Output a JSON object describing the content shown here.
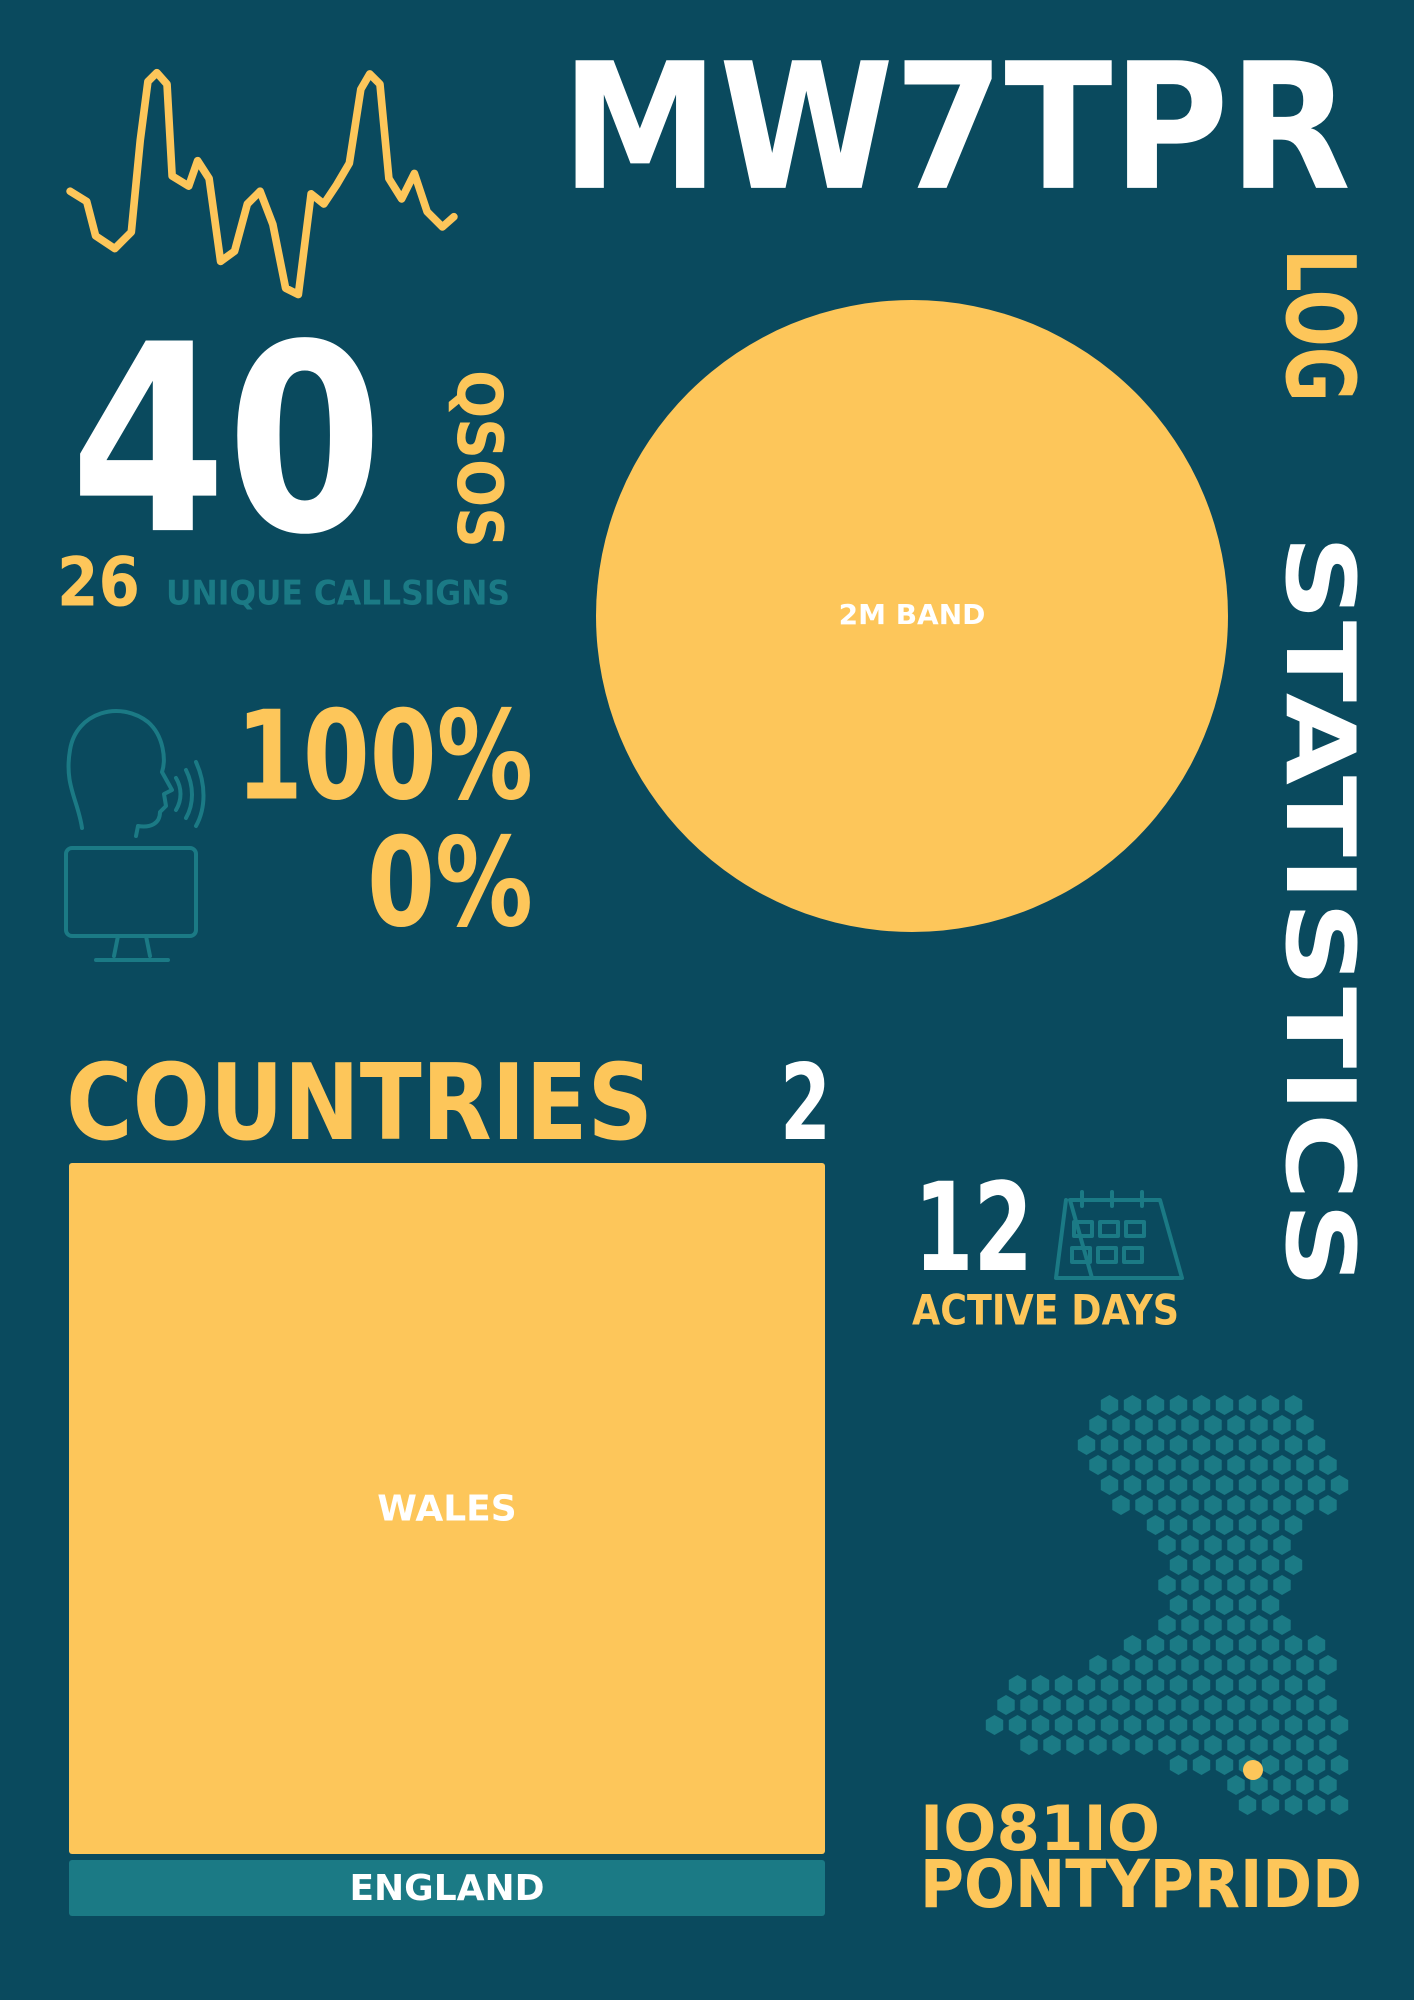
{
  "header": {
    "callsign": "MW7TPR",
    "subtitle": [
      "LOG",
      "STATISTICS"
    ]
  },
  "qsos": {
    "value": "40",
    "label": "QSOS"
  },
  "unique": {
    "value": "26",
    "label": "UNIQUE CALLSIGNS"
  },
  "modes": {
    "voice": "100%",
    "digital": "0%"
  },
  "countries": {
    "label": "COUNTRIES",
    "count": "2"
  },
  "active_days": {
    "value": "12",
    "label": "ACTIVE DAYS"
  },
  "location": {
    "locator": "IO81IO",
    "town": "PONTYPRIDD"
  },
  "chart_data": [
    {
      "type": "pie",
      "categories": [
        "2M BAND"
      ],
      "values": [
        40
      ],
      "colors": [
        "#fdc65a"
      ]
    },
    {
      "type": "treemap",
      "categories": [
        "WALES",
        "ENGLAND"
      ],
      "values": [
        37,
        3
      ],
      "colors": [
        "#fdc65a",
        "#1b7a85"
      ]
    }
  ]
}
